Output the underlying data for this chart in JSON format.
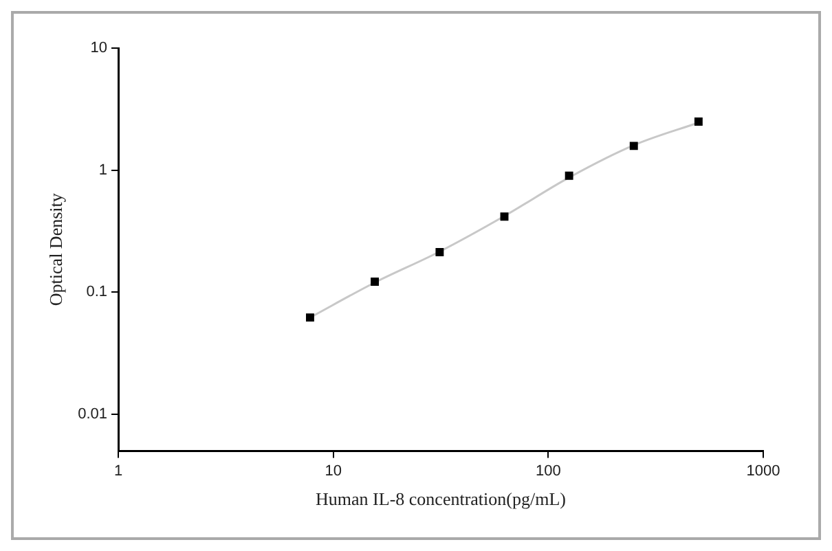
{
  "chart_data": {
    "type": "scatter",
    "xlabel": "Human IL-8 concentration(pg/mL)",
    "ylabel": "Optical Density",
    "log": "xy",
    "xlim": [
      1,
      1000
    ],
    "xticks": [
      1,
      10,
      100,
      1000
    ],
    "ylim": [
      0.005,
      10
    ],
    "yticks": [
      0.01,
      0.1,
      1,
      10
    ],
    "grid": false,
    "legend": false,
    "series": [
      {
        "type": "scatter",
        "marker": "square",
        "color": "#000000",
        "x": [
          7.8,
          15.6,
          31.25,
          62.5,
          125,
          250,
          500
        ],
        "values": [
          0.062,
          0.122,
          0.213,
          0.416,
          0.9,
          1.58,
          2.5
        ]
      },
      {
        "type": "line",
        "marker": "none",
        "color": "#c8c8c8",
        "x": [
          7.8,
          15.6,
          31.25,
          62.5,
          125,
          250,
          500
        ],
        "values": [
          0.062,
          0.12,
          0.215,
          0.42,
          0.87,
          1.6,
          2.45
        ]
      }
    ]
  }
}
